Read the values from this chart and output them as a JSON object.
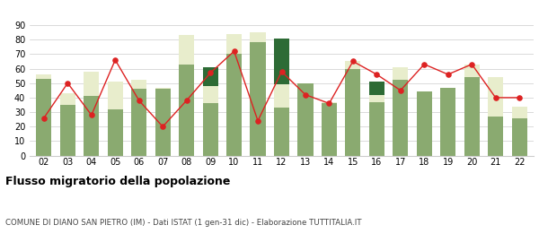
{
  "years": [
    "02",
    "03",
    "04",
    "05",
    "06",
    "07",
    "08",
    "09",
    "10",
    "11",
    "12",
    "13",
    "14",
    "15",
    "16",
    "17",
    "18",
    "19",
    "20",
    "21",
    "22"
  ],
  "iscritti_comuni": [
    53,
    35,
    41,
    32,
    46,
    46,
    63,
    36,
    70,
    78,
    33,
    50,
    36,
    60,
    37,
    52,
    44,
    47,
    54,
    27,
    26
  ],
  "iscritti_estero": [
    3,
    8,
    17,
    19,
    6,
    1,
    20,
    12,
    14,
    7,
    16,
    0,
    1,
    5,
    5,
    9,
    0,
    0,
    9,
    27,
    8
  ],
  "iscritti_altri": [
    0,
    0,
    0,
    0,
    0,
    0,
    0,
    13,
    0,
    0,
    32,
    0,
    0,
    0,
    9,
    0,
    0,
    0,
    0,
    0,
    0
  ],
  "cancellati": [
    26,
    50,
    28,
    66,
    38,
    20,
    38,
    57,
    72,
    24,
    58,
    42,
    36,
    65,
    56,
    45,
    63,
    56,
    63,
    40,
    40
  ],
  "color_comuni": "#8aaa70",
  "color_estero": "#e8edcc",
  "color_altri": "#2d6b35",
  "color_cancellati": "#dd2222",
  "color_grid": "#cccccc",
  "ylim": [
    0,
    90
  ],
  "yticks": [
    0,
    10,
    20,
    30,
    40,
    50,
    60,
    70,
    80,
    90
  ],
  "title": "Flusso migratorio della popolazione",
  "subtitle": "COMUNE DI DIANO SAN PIETRO (IM) - Dati ISTAT (1 gen-31 dic) - Elaborazione TUTTITALIA.IT",
  "bar_width": 0.65
}
